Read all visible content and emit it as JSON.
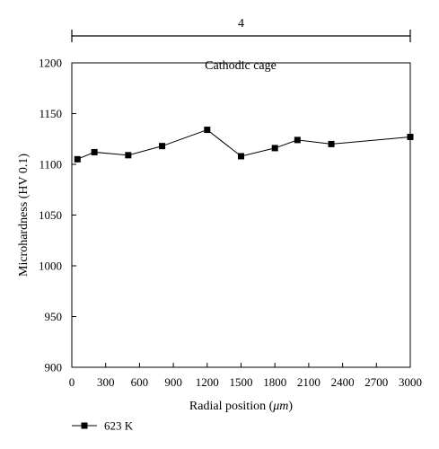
{
  "chart_data": {
    "type": "line",
    "title": "",
    "xlabel": "Radial position (",
    "xlabel_unit": "μm",
    "xlabel_suffix": ")",
    "ylabel": "Microhardness (HV 0.1)",
    "xlim": [
      0,
      3000
    ],
    "ylim": [
      900,
      1200
    ],
    "x_ticks": [
      0,
      300,
      600,
      900,
      1200,
      1500,
      1800,
      2100,
      2400,
      2700,
      3000
    ],
    "y_ticks": [
      900,
      950,
      1000,
      1050,
      1100,
      1150,
      1200
    ],
    "x_tick_labels": [
      "0",
      "300",
      "600",
      "900",
      "1200",
      "1500",
      "1800",
      "2100",
      "2400",
      "2700",
      "3000"
    ],
    "y_tick_labels": [
      "900",
      "950",
      "1000",
      "1050",
      "1100",
      "1150",
      "1200"
    ],
    "annotation": "Cathodic cage",
    "span_label": "4",
    "span_range": [
      0,
      3000
    ],
    "grid": false,
    "legend_position": "bottom-left",
    "series": [
      {
        "name": "623 K",
        "color": "#000000",
        "marker": "square",
        "x": [
          50,
          200,
          500,
          800,
          1200,
          1500,
          1800,
          2000,
          2300,
          3000
        ],
        "y": [
          1105,
          1112,
          1109,
          1118,
          1134,
          1108,
          1116,
          1124,
          1120,
          1127
        ]
      }
    ]
  }
}
